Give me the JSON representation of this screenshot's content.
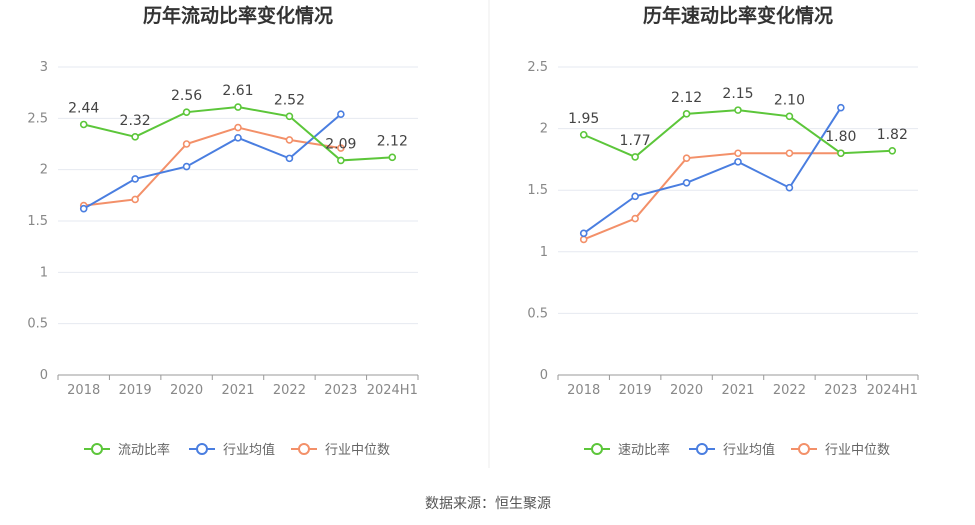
{
  "source": "数据来源：恒生聚源",
  "colors": {
    "primary": "#5cc63a",
    "avg": "#4a7ee0",
    "median": "#f39069",
    "grid": "#e6e9f0",
    "axis": "#999999"
  },
  "chart_data": [
    {
      "type": "line",
      "title": "历年流动比率变化情况",
      "categories": [
        "2018",
        "2019",
        "2020",
        "2021",
        "2022",
        "2023",
        "2024H1"
      ],
      "ylim": [
        0,
        3
      ],
      "yticks": [
        "0",
        "0.5",
        "1",
        "1.5",
        "2",
        "2.5",
        "3"
      ],
      "ytick_values": [
        0,
        0.5,
        1,
        1.5,
        2,
        2.5,
        3
      ],
      "legend_position": "bottom",
      "grid": true,
      "series": [
        {
          "name": "流动比率",
          "color": "#5cc63a",
          "values": [
            2.44,
            2.32,
            2.56,
            2.61,
            2.52,
            2.09,
            2.12
          ],
          "labels": [
            "2.44",
            "2.32",
            "2.56",
            "2.61",
            "2.52",
            "2.09",
            "2.12"
          ]
        },
        {
          "name": "行业均值",
          "color": "#4a7ee0",
          "values": [
            1.62,
            1.91,
            2.03,
            2.31,
            2.11,
            2.54,
            null
          ]
        },
        {
          "name": "行业中位数",
          "color": "#f39069",
          "values": [
            1.65,
            1.71,
            2.25,
            2.41,
            2.29,
            2.21,
            null
          ]
        }
      ]
    },
    {
      "type": "line",
      "title": "历年速动比率变化情况",
      "categories": [
        "2018",
        "2019",
        "2020",
        "2021",
        "2022",
        "2023",
        "2024H1"
      ],
      "ylim": [
        0,
        2.5
      ],
      "yticks": [
        "0",
        "0.5",
        "1",
        "1.5",
        "2",
        "2.5"
      ],
      "ytick_values": [
        0,
        0.5,
        1,
        1.5,
        2,
        2.5
      ],
      "legend_position": "bottom",
      "grid": true,
      "series": [
        {
          "name": "速动比率",
          "color": "#5cc63a",
          "values": [
            1.95,
            1.77,
            2.12,
            2.15,
            2.1,
            1.8,
            1.82
          ],
          "labels": [
            "1.95",
            "1.77",
            "2.12",
            "2.15",
            "2.10",
            "1.80",
            "1.82"
          ]
        },
        {
          "name": "行业均值",
          "color": "#4a7ee0",
          "values": [
            1.15,
            1.45,
            1.56,
            1.73,
            1.52,
            2.17,
            null
          ]
        },
        {
          "name": "行业中位数",
          "color": "#f39069",
          "values": [
            1.1,
            1.27,
            1.76,
            1.8,
            1.8,
            1.8,
            null
          ]
        }
      ]
    }
  ]
}
